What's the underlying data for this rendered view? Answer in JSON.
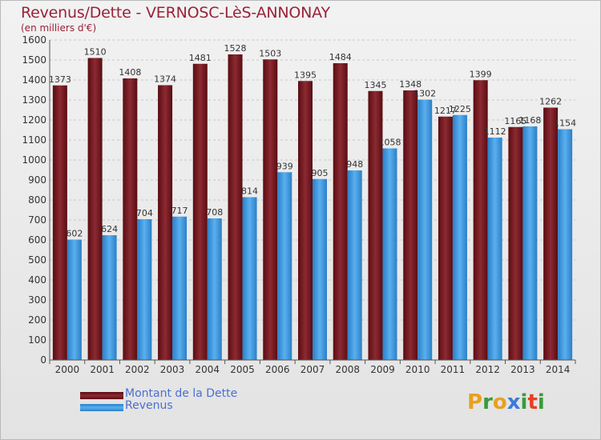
{
  "title": "Revenus/Dette - VERNOSC-LèS-ANNONAY",
  "subtitle": "(en milliers d'€)",
  "logo": {
    "text": "Proxiti",
    "letters": [
      "P",
      "r",
      "o",
      "x",
      "i",
      "t",
      "i"
    ],
    "colors": [
      "#e8a020",
      "#3a9a3a",
      "#e8a020",
      "#3a7ad8",
      "#3a9a3a",
      "#e84020",
      "#3a9a3a"
    ]
  },
  "chart_data": {
    "type": "bar",
    "title": "Revenus/Dette - VERNOSC-LèS-ANNONAY",
    "subtitle": "(en milliers d'€)",
    "categories": [
      "2000",
      "2001",
      "2002",
      "2003",
      "2004",
      "2005",
      "2006",
      "2007",
      "2008",
      "2009",
      "2010",
      "2011",
      "2012",
      "2013",
      "2014"
    ],
    "series": [
      {
        "name": "Montant de la Dette",
        "color": "#7a1a22",
        "values": [
          1373,
          1510,
          1408,
          1374,
          1481,
          1528,
          1503,
          1395,
          1484,
          1345,
          1348,
          1217,
          1399,
          1165,
          1262
        ]
      },
      {
        "name": "Revenus",
        "color": "#4aa3e6",
        "values": [
          602,
          624,
          704,
          717,
          708,
          814,
          939,
          905,
          948,
          1058,
          1302,
          1225,
          1112,
          1168,
          1154
        ]
      }
    ],
    "ylim": [
      0,
      1600
    ],
    "yticks": [
      0,
      100,
      200,
      300,
      400,
      500,
      600,
      700,
      800,
      900,
      1000,
      1100,
      1200,
      1300,
      1400,
      1500,
      1600
    ],
    "grid": true,
    "legend_position": "bottom-left"
  }
}
